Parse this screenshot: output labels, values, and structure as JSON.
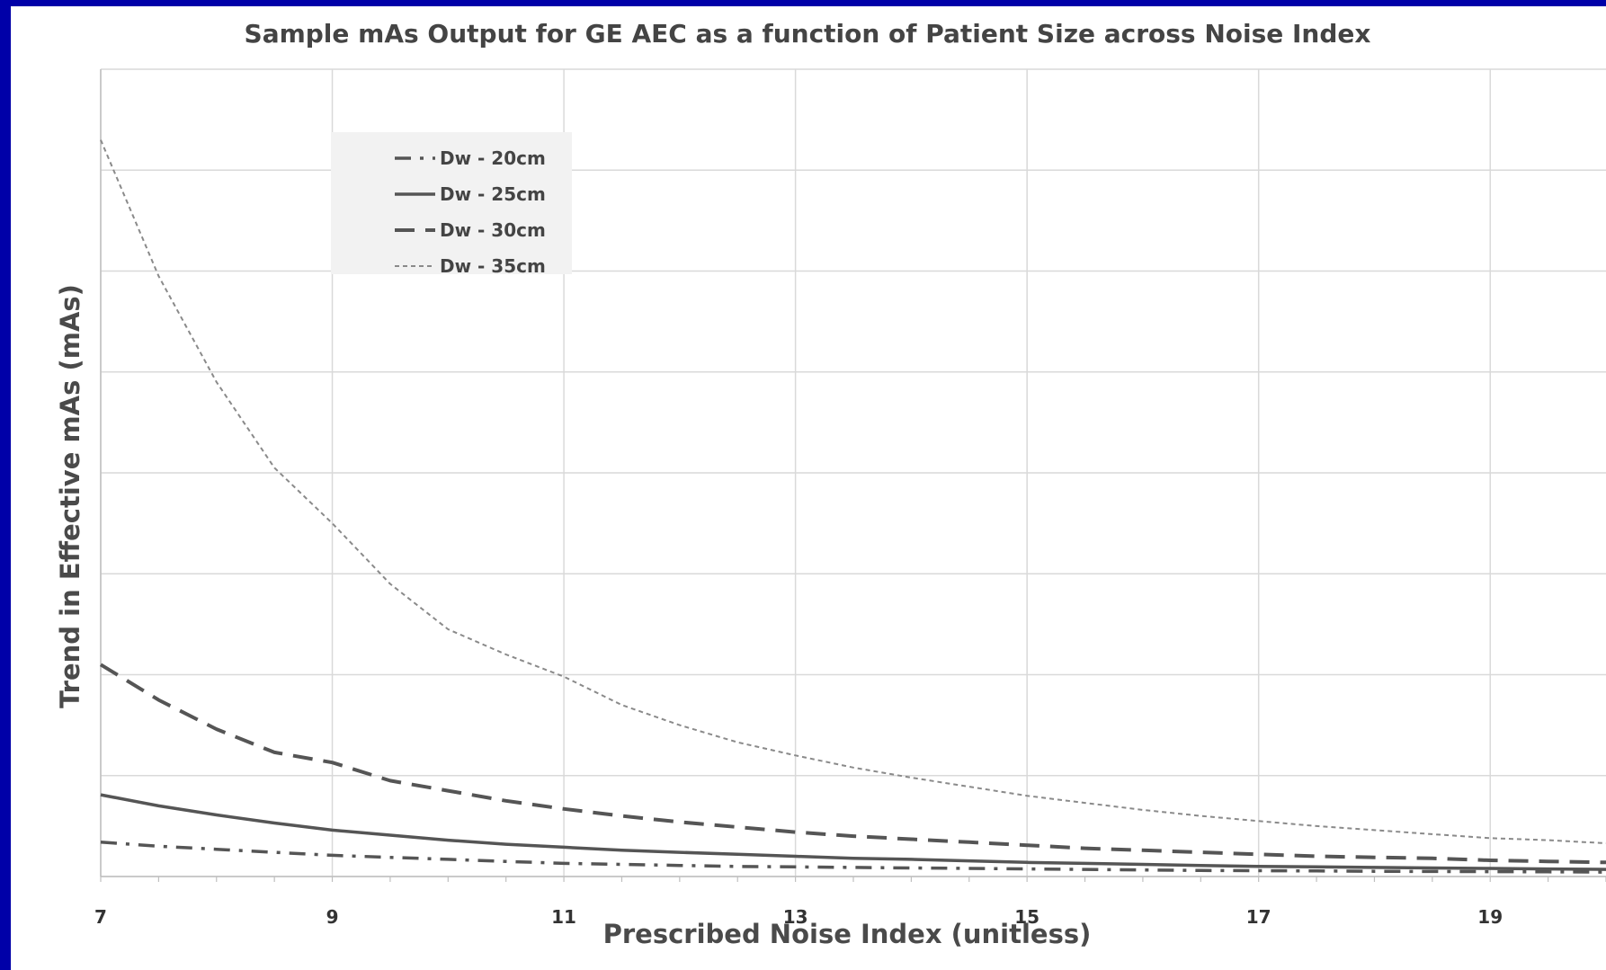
{
  "chart_data": {
    "type": "line",
    "title": "Sample mAs Output for GE AEC as a function of Patient Size across Noise Index",
    "xlabel": "Prescribed Noise Index (unitless)",
    "ylabel": "Trend in  Effective mAs (mAs)",
    "xlim": [
      7,
      20
    ],
    "ylim": [
      0,
      8
    ],
    "x_ticks": [
      7,
      9,
      11,
      13,
      15,
      17,
      19
    ],
    "y_ticks_labeled": false,
    "grid": true,
    "legend_position": "top-left",
    "x": [
      7,
      7.5,
      8,
      8.5,
      9,
      9.5,
      10,
      10.5,
      11,
      11.5,
      12,
      12.5,
      13,
      13.5,
      14,
      14.5,
      15,
      15.5,
      16,
      16.5,
      17,
      17.5,
      18,
      18.5,
      19,
      19.5,
      20
    ],
    "series": [
      {
        "name": "Dw - 20cm",
        "style": "dash-dot",
        "color": "#555555",
        "values": [
          0.34,
          0.3,
          0.27,
          0.24,
          0.21,
          0.19,
          0.17,
          0.15,
          0.13,
          0.12,
          0.11,
          0.1,
          0.095,
          0.09,
          0.085,
          0.08,
          0.075,
          0.07,
          0.065,
          0.06,
          0.058,
          0.055,
          0.052,
          0.05,
          0.048,
          0.046,
          0.044
        ]
      },
      {
        "name": "Dw - 25cm",
        "style": "solid",
        "color": "#555555",
        "values": [
          0.81,
          0.7,
          0.61,
          0.53,
          0.46,
          0.41,
          0.36,
          0.32,
          0.29,
          0.26,
          0.24,
          0.22,
          0.2,
          0.18,
          0.17,
          0.155,
          0.14,
          0.13,
          0.12,
          0.11,
          0.1,
          0.095,
          0.09,
          0.085,
          0.08,
          0.075,
          0.07
        ]
      },
      {
        "name": "Dw - 30cm",
        "style": "dashed",
        "color": "#555555",
        "values": [
          2.1,
          1.75,
          1.46,
          1.23,
          1.13,
          0.95,
          0.85,
          0.75,
          0.67,
          0.6,
          0.54,
          0.49,
          0.44,
          0.4,
          0.37,
          0.34,
          0.31,
          0.28,
          0.26,
          0.24,
          0.22,
          0.2,
          0.19,
          0.18,
          0.16,
          0.15,
          0.14
        ]
      },
      {
        "name": "Dw - 35cm",
        "style": "dotted",
        "color": "#8a8a8a",
        "values": [
          7.3,
          5.95,
          4.9,
          4.05,
          3.5,
          2.9,
          2.45,
          2.2,
          1.98,
          1.7,
          1.5,
          1.33,
          1.2,
          1.08,
          0.98,
          0.89,
          0.8,
          0.73,
          0.66,
          0.6,
          0.55,
          0.5,
          0.46,
          0.42,
          0.38,
          0.36,
          0.33
        ]
      }
    ]
  }
}
